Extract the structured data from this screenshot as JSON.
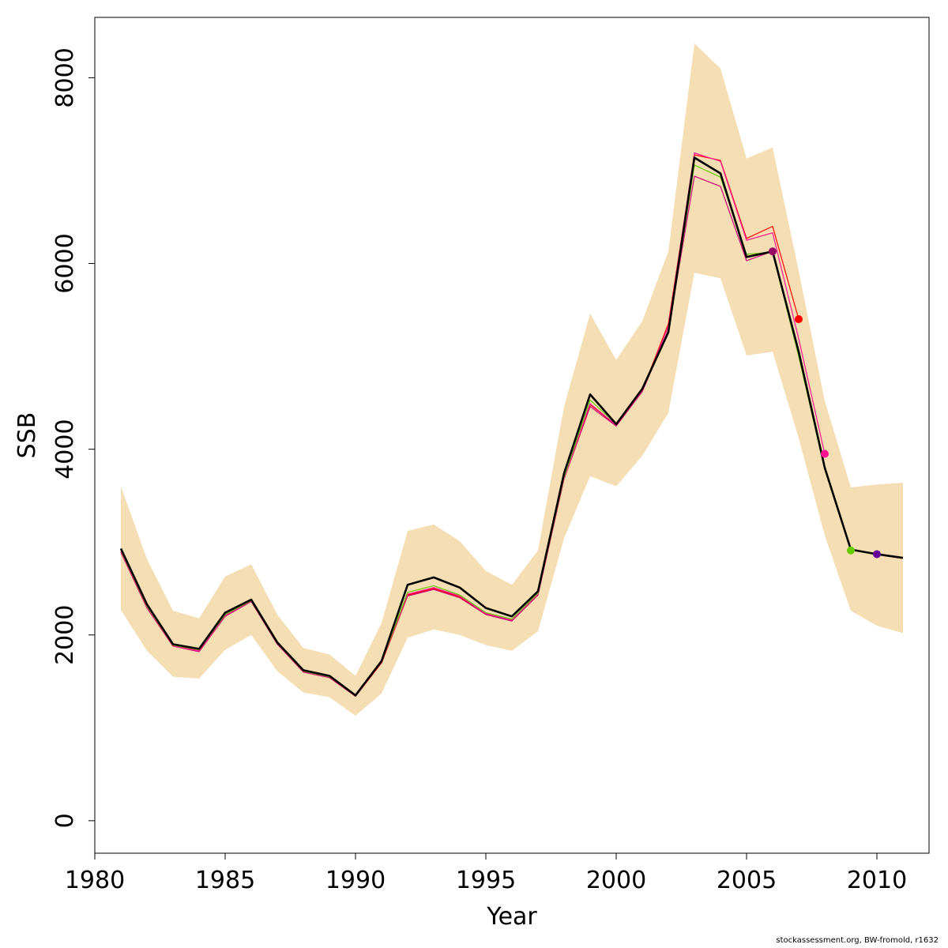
{
  "footer": "stockassessment.org, BW-fromold, r1632",
  "chart_data": {
    "type": "line",
    "xlabel": "Year",
    "ylabel": "SSB",
    "xlim": [
      1980,
      2012
    ],
    "ylim": [
      -350,
      8650
    ],
    "x_ticks": [
      1980,
      1985,
      1990,
      1995,
      2000,
      2005,
      2010
    ],
    "y_ticks": [
      0,
      2000,
      4000,
      6000,
      8000
    ],
    "grid": false,
    "legend": "none",
    "band_color": "#F5DEB3",
    "confidence_band": {
      "x": [
        1981,
        1982,
        1983,
        1984,
        1985,
        1986,
        1987,
        1988,
        1989,
        1990,
        1991,
        1992,
        1993,
        1994,
        1995,
        1996,
        1997,
        1998,
        1999,
        2000,
        2001,
        2002,
        2003,
        2004,
        2005,
        2006,
        2007,
        2008,
        2009,
        2010,
        2011
      ],
      "lower": [
        2270,
        1830,
        1550,
        1530,
        1840,
        2000,
        1610,
        1380,
        1330,
        1130,
        1370,
        1970,
        2060,
        2000,
        1890,
        1830,
        2040,
        3040,
        3710,
        3600,
        3930,
        4390,
        5900,
        5840,
        5010,
        5050,
        4120,
        3070,
        2260,
        2100,
        2020
      ],
      "upper": [
        3600,
        2820,
        2260,
        2180,
        2630,
        2760,
        2220,
        1860,
        1790,
        1560,
        2130,
        3120,
        3190,
        3010,
        2690,
        2540,
        2910,
        4460,
        5460,
        4960,
        5380,
        6130,
        8370,
        8100,
        7130,
        7250,
        5920,
        4520,
        3590,
        3620,
        3640
      ]
    },
    "series": [
      {
        "color": "#000000",
        "width": 2.6,
        "x": [
          1981,
          1982,
          1983,
          1984,
          1985,
          1986,
          1987,
          1988,
          1989,
          1990,
          1991,
          1992,
          1993,
          1994,
          1995,
          1996,
          1997,
          1998,
          1999,
          2000,
          2001,
          2002,
          2003,
          2004,
          2005,
          2006,
          2007,
          2008,
          2009,
          2010,
          2011
        ],
        "values": [
          2930,
          2330,
          1900,
          1850,
          2240,
          2380,
          1920,
          1620,
          1560,
          1350,
          1720,
          2540,
          2620,
          2510,
          2290,
          2200,
          2470,
          3740,
          4590,
          4270,
          4650,
          5260,
          7140,
          6970,
          6070,
          6130,
          5050,
          3800,
          2920,
          2870,
          2830
        ]
      },
      {
        "color": "#66CC00",
        "width": 1.2,
        "x": [
          1981,
          1982,
          1983,
          1984,
          1985,
          1986,
          1987,
          1988,
          1989,
          1990,
          1991,
          1992,
          1993,
          1994,
          1995,
          1996,
          1997,
          1998,
          1999,
          2000,
          2001,
          2002,
          2003,
          2004,
          2005,
          2006,
          2007,
          2008,
          2009
        ],
        "values": [
          2910,
          2310,
          1890,
          1840,
          2220,
          2370,
          1910,
          1610,
          1550,
          1350,
          1710,
          2460,
          2530,
          2430,
          2240,
          2170,
          2450,
          3700,
          4530,
          4270,
          4640,
          5250,
          7060,
          6930,
          6100,
          6120,
          5000,
          3780,
          2910
        ]
      },
      {
        "color": "#FF1493",
        "width": 1.2,
        "x": [
          1981,
          1982,
          1983,
          1984,
          1985,
          1986,
          1987,
          1988,
          1989,
          1990,
          1991,
          1992,
          1993,
          1994,
          1995,
          1996,
          1997,
          1998,
          1999,
          2000,
          2001,
          2002,
          2003,
          2004,
          2005,
          2006,
          2007,
          2008
        ],
        "values": [
          2900,
          2300,
          1880,
          1830,
          2210,
          2370,
          1910,
          1610,
          1550,
          1340,
          1710,
          2440,
          2510,
          2420,
          2230,
          2160,
          2440,
          3690,
          4490,
          4260,
          4630,
          5320,
          7190,
          7100,
          6250,
          6330,
          5190,
          3950
        ]
      },
      {
        "color": "#FF0000",
        "width": 1.2,
        "x": [
          1981,
          1982,
          1983,
          1984,
          1985,
          1986,
          1987,
          1988,
          1989,
          1990,
          1991,
          1992,
          1993,
          1994,
          1995,
          1996,
          1997,
          1998,
          1999,
          2000,
          2001,
          2002,
          2003,
          2004,
          2005,
          2006,
          2007
        ],
        "values": [
          2900,
          2300,
          1880,
          1830,
          2210,
          2370,
          1910,
          1610,
          1550,
          1340,
          1700,
          2430,
          2500,
          2410,
          2230,
          2160,
          2440,
          3690,
          4480,
          4260,
          4630,
          5350,
          7170,
          7110,
          6270,
          6400,
          5400
        ]
      },
      {
        "color": "#CC0077",
        "width": 1.2,
        "x": [
          1981,
          1982,
          1983,
          1984,
          1985,
          1986,
          1987,
          1988,
          1989,
          1990,
          1991,
          1992,
          1993,
          1994,
          1995,
          1996,
          1997,
          1998,
          1999,
          2000,
          2001,
          2002,
          2003,
          2004,
          2005,
          2006
        ],
        "values": [
          2890,
          2290,
          1880,
          1820,
          2200,
          2360,
          1900,
          1600,
          1540,
          1340,
          1700,
          2420,
          2490,
          2400,
          2220,
          2150,
          2430,
          3680,
          4460,
          4250,
          4620,
          5280,
          6940,
          6830,
          6030,
          6130
        ]
      }
    ],
    "points": [
      {
        "x": 2006,
        "y": 6130,
        "color": "#990066"
      },
      {
        "x": 2007,
        "y": 5400,
        "color": "#FF0000"
      },
      {
        "x": 2008,
        "y": 3950,
        "color": "#FF1493"
      },
      {
        "x": 2009,
        "y": 2910,
        "color": "#66CC00"
      },
      {
        "x": 2010,
        "y": 2870,
        "color": "#660099"
      }
    ]
  }
}
